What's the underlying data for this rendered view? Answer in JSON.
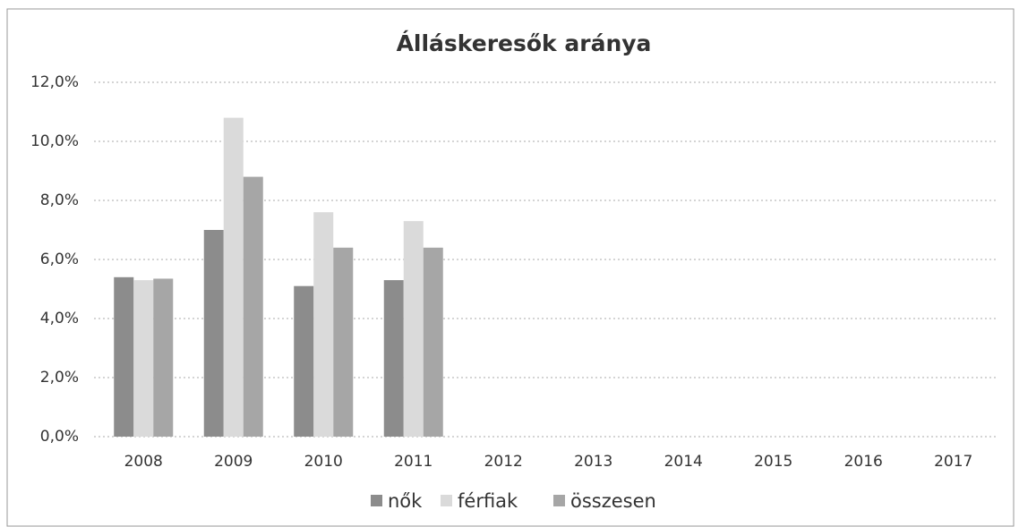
{
  "chart_data": {
    "type": "bar",
    "title": "Álláskeresők aránya",
    "categories": [
      "2008",
      "2009",
      "2010",
      "2011",
      "2012",
      "2013",
      "2014",
      "2015",
      "2016",
      "2017"
    ],
    "series": [
      {
        "name": "nők",
        "color": "#8c8c8c",
        "values": [
          5.4,
          7.0,
          5.1,
          5.3,
          null,
          null,
          null,
          null,
          null,
          null
        ]
      },
      {
        "name": "férfiak",
        "color": "#dadada",
        "values": [
          5.3,
          10.8,
          7.6,
          7.3,
          null,
          null,
          null,
          null,
          null,
          null
        ]
      },
      {
        "name": "összesen",
        "color": "#a6a6a6",
        "values": [
          5.35,
          8.8,
          6.4,
          6.4,
          null,
          null,
          null,
          null,
          null,
          null
        ]
      }
    ],
    "ylim": [
      0,
      12
    ],
    "yticks": [
      {
        "value": 0,
        "label": "0,0%"
      },
      {
        "value": 2,
        "label": "2,0%"
      },
      {
        "value": 4,
        "label": "4,0%"
      },
      {
        "value": 6,
        "label": "6,0%"
      },
      {
        "value": 8,
        "label": "8,0%"
      },
      {
        "value": 10,
        "label": "10,0%"
      },
      {
        "value": 12,
        "label": "12,0%"
      }
    ],
    "grid": true,
    "legend": "bottom"
  }
}
